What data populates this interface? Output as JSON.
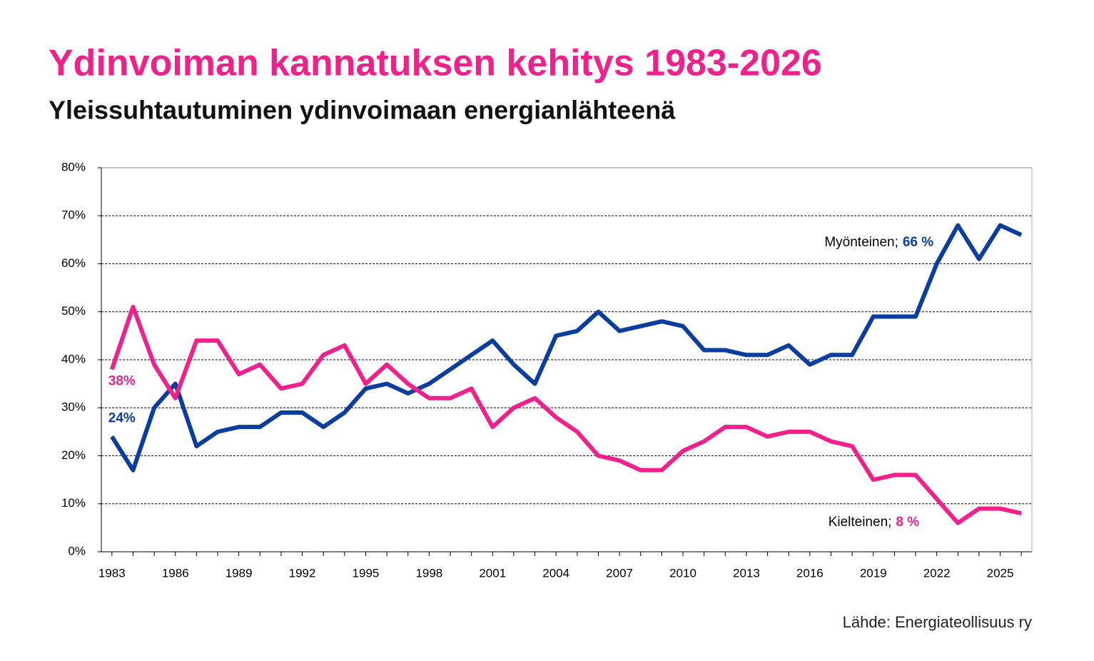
{
  "chart_data": {
    "type": "line",
    "title": "Ydinvoiman kannatuksen kehitys 1983-2026",
    "subtitle": "Yleissuhtautuminen ydinvoimaan energianlähteenä",
    "source": "Lähde: Energiateollisuus ry",
    "x": [
      1983,
      1984,
      1985,
      1986,
      1987,
      1988,
      1989,
      1990,
      1991,
      1992,
      1993,
      1994,
      1995,
      1996,
      1997,
      1998,
      1999,
      2000,
      2001,
      2002,
      2003,
      2004,
      2005,
      2006,
      2007,
      2008,
      2009,
      2010,
      2011,
      2012,
      2013,
      2014,
      2015,
      2016,
      2017,
      2018,
      2019,
      2020,
      2021,
      2022,
      2023,
      2024,
      2025,
      2026
    ],
    "xlim": [
      1982.5,
      2026.5
    ],
    "xticks": [
      1983,
      1986,
      1989,
      1992,
      1995,
      1998,
      2001,
      2004,
      2007,
      2010,
      2013,
      2016,
      2019,
      2022,
      2025
    ],
    "ylim": [
      0,
      80
    ],
    "yticks": [
      {
        "value": 0,
        "label": "0%"
      },
      {
        "value": 10,
        "label": "10%"
      },
      {
        "value": 20,
        "label": "20%"
      },
      {
        "value": 30,
        "label": "30%"
      },
      {
        "value": 40,
        "label": "40%"
      },
      {
        "value": 50,
        "label": "50%"
      },
      {
        "value": 60,
        "label": "60%"
      },
      {
        "value": 70,
        "label": "70%"
      },
      {
        "value": 80,
        "label": "80%"
      }
    ],
    "grid": true,
    "series": [
      {
        "name": "Myönteinen;",
        "color": "#0a3d9e",
        "values": [
          24,
          17,
          30,
          35,
          22,
          25,
          26,
          26,
          29,
          29,
          26,
          29,
          34,
          35,
          33,
          35,
          38,
          41,
          44,
          39,
          35,
          45,
          46,
          50,
          46,
          47,
          48,
          47,
          42,
          42,
          41,
          41,
          43,
          39,
          41,
          41,
          49,
          49,
          49,
          60,
          68,
          61,
          68,
          66
        ],
        "value_labels": [
          "24%",
          null,
          null,
          null,
          null,
          null,
          null,
          null,
          null,
          null,
          null,
          null,
          null,
          null,
          null,
          null,
          null,
          null,
          null,
          null,
          null,
          null,
          null,
          null,
          null,
          null,
          null,
          null,
          null,
          null,
          null,
          null,
          null,
          null,
          null,
          null,
          null,
          null,
          null,
          null,
          null,
          null,
          null,
          "66 %"
        ]
      },
      {
        "name": "Kielteinen;",
        "color": "#f0218b",
        "values": [
          38,
          51,
          39,
          32,
          44,
          44,
          37,
          39,
          34,
          35,
          41,
          43,
          35,
          39,
          35,
          32,
          32,
          34,
          26,
          30,
          32,
          28,
          25,
          20,
          19,
          17,
          17,
          21,
          23,
          26,
          26,
          24,
          25,
          25,
          23,
          22,
          15,
          16,
          16,
          11,
          6,
          9,
          9,
          8
        ],
        "value_labels": [
          "38%",
          null,
          null,
          null,
          null,
          null,
          null,
          null,
          null,
          null,
          null,
          null,
          null,
          null,
          null,
          null,
          null,
          null,
          null,
          null,
          null,
          null,
          null,
          null,
          null,
          null,
          null,
          null,
          null,
          null,
          null,
          null,
          null,
          null,
          null,
          null,
          null,
          null,
          null,
          null,
          null,
          null,
          null,
          "8 %"
        ]
      }
    ]
  }
}
